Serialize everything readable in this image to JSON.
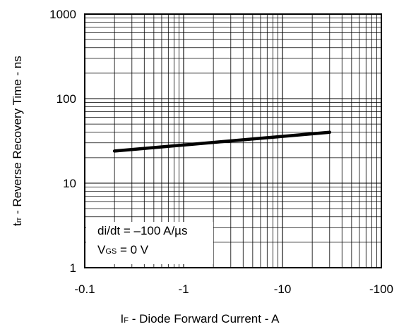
{
  "chart_data": {
    "type": "line",
    "x_scale": "log",
    "y_scale": "log",
    "grid": true,
    "xlim": [
      -0.1,
      -100
    ],
    "ylim": [
      1,
      1000
    ],
    "x_ticks": [
      "-0.1",
      "-1",
      "-10",
      "-100"
    ],
    "y_ticks": [
      "1",
      "10",
      "100",
      "1000"
    ],
    "ylabel": {
      "main": "t",
      "sub": "rr",
      "rest": " - Reverse Recovery Time - ns"
    },
    "xlabel": {
      "main": "I",
      "sub": "F",
      "rest": " - Diode Forward Current - A"
    },
    "annotations": {
      "line1": "di/dt = –100 A/µs",
      "line2_main": "V",
      "line2_sub": "GS",
      "line2_rest": " = 0 V"
    },
    "series": [
      {
        "x": [
          -0.2,
          -30
        ],
        "y": [
          24,
          40
        ]
      }
    ],
    "line_color": "#000000"
  }
}
